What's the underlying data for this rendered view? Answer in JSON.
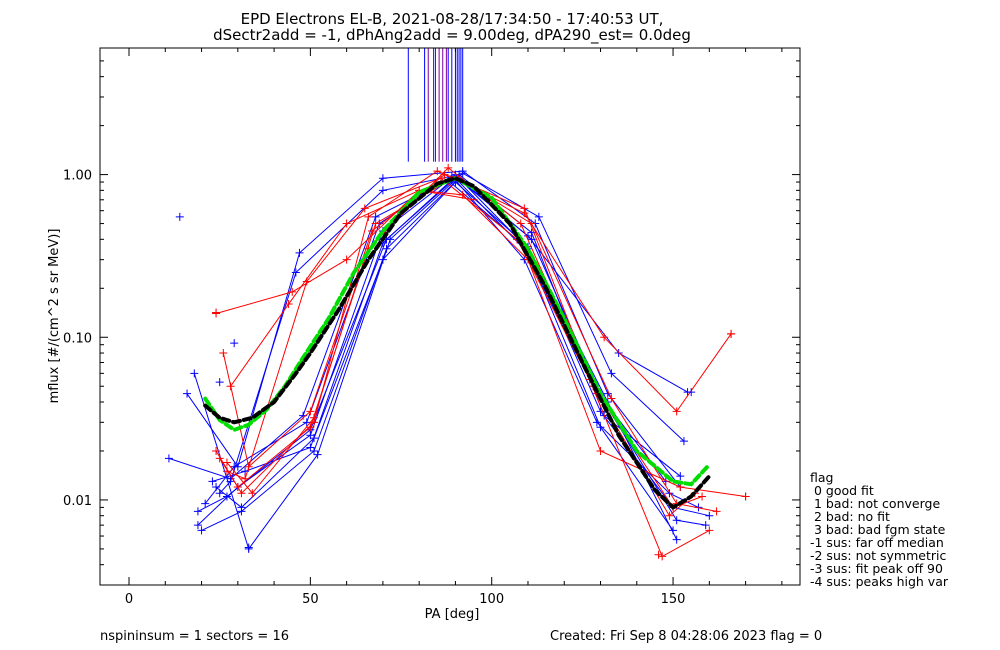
{
  "chart_data": {
    "type": "line",
    "title": "EPD Electrons EL-B, 2021-08-28/17:34:50 - 17:40:53 UT,",
    "subtitle": "dSectr2add = -1, dPhAng2add = 9.00deg, dPA290_est=   0.0deg",
    "xlabel": "PA [deg]",
    "ylabel": "mflux [#/(cm^2 s sr MeV)]",
    "xlim": [
      -8,
      185
    ],
    "ylim": [
      0.003,
      6.0
    ],
    "yscale": "log",
    "x_ticks": [
      0,
      50,
      100,
      150
    ],
    "x_tick_labels": [
      "0",
      "50",
      "100",
      "150"
    ],
    "y_ticks": [
      0.01,
      0.1,
      1.0
    ],
    "y_tick_labels": [
      "0.01",
      "0.10",
      "1.00"
    ],
    "grid": false,
    "colors": {
      "blue": "#0000ff",
      "red": "#ff0000",
      "green": "#00dd00",
      "purple": "#7f00a0",
      "black": "#000000"
    },
    "series": [
      {
        "color": "blue",
        "x": [
          19,
          30,
          50,
          70,
          90,
          110,
          130,
          150,
          160
        ],
        "y": [
          0.007,
          0.012,
          0.025,
          0.45,
          1.0,
          0.35,
          0.035,
          0.009,
          0.008
        ]
      },
      {
        "color": "blue",
        "x": [
          20,
          31,
          51,
          71,
          91,
          111,
          131,
          151,
          159
        ],
        "y": [
          0.0065,
          0.0085,
          0.02,
          0.35,
          0.95,
          0.4,
          0.04,
          0.0075,
          0.007
        ]
      },
      {
        "color": "blue",
        "x": [
          21,
          29,
          49,
          69,
          89,
          109,
          129,
          149,
          157
        ],
        "y": [
          0.0095,
          0.016,
          0.03,
          0.5,
          0.98,
          0.3,
          0.03,
          0.011,
          0.009
        ]
      },
      {
        "color": "blue",
        "x": [
          11,
          28,
          48,
          68,
          88,
          108,
          128,
          148
        ],
        "y": [
          0.018,
          0.0135,
          0.033,
          0.55,
          0.92,
          0.38,
          0.05,
          0.013
        ]
      },
      {
        "color": "blue",
        "x": [
          16,
          30,
          47,
          70,
          92,
          112,
          132,
          152
        ],
        "y": [
          0.045,
          0.016,
          0.33,
          0.95,
          1.05,
          0.5,
          0.045,
          0.012
        ]
      },
      {
        "color": "blue",
        "x": [
          18,
          33,
          52,
          72,
          92,
          113,
          133,
          153
        ],
        "y": [
          0.06,
          0.005,
          0.019,
          0.4,
          1.02,
          0.55,
          0.06,
          0.023
        ]
      },
      {
        "color": "blue",
        "x": [
          23,
          32,
          50,
          70,
          90,
          110,
          135,
          154
        ],
        "y": [
          0.013,
          0.015,
          0.021,
          0.38,
          0.97,
          0.42,
          0.08,
          0.046
        ]
      },
      {
        "color": "blue",
        "x": [
          19,
          27,
          50,
          71,
          90,
          110,
          130,
          150
        ],
        "y": [
          0.0085,
          0.0105,
          0.027,
          0.4,
          0.95,
          0.33,
          0.028,
          0.0065
        ]
      },
      {
        "color": "blue",
        "x": [
          24,
          31,
          51,
          70,
          90,
          110,
          132,
          151
        ],
        "y": [
          0.012,
          0.009,
          0.024,
          0.3,
          0.9,
          0.36,
          0.04,
          0.0057
        ]
      },
      {
        "color": "blue",
        "x": [
          25,
          28,
          46,
          70,
          91,
          111,
          131,
          152
        ],
        "y": [
          0.011,
          0.013,
          0.25,
          0.8,
          1.0,
          0.44,
          0.033,
          0.014
        ]
      },
      {
        "color": "red",
        "x": [
          24,
          31,
          51,
          66,
          85,
          109,
          129,
          149,
          156
        ],
        "y": [
          0.02,
          0.011,
          0.03,
          0.55,
          1.05,
          0.62,
          0.045,
          0.008,
          0.011
        ]
      },
      {
        "color": "red",
        "x": [
          25,
          30,
          50,
          66,
          88,
          108,
          128,
          150,
          158
        ],
        "y": [
          0.018,
          0.012,
          0.028,
          0.35,
          1.1,
          0.5,
          0.05,
          0.009,
          0.0105
        ]
      },
      {
        "color": "red",
        "x": [
          27,
          32,
          49,
          65,
          86,
          107,
          127,
          147,
          160
        ],
        "y": [
          0.015,
          0.0135,
          0.22,
          0.62,
          0.95,
          0.4,
          0.055,
          0.0045,
          0.0065
        ]
      },
      {
        "color": "red",
        "x": [
          24,
          45,
          60,
          80,
          92,
          110,
          130,
          152,
          170
        ],
        "y": [
          0.14,
          0.19,
          0.3,
          0.8,
          0.75,
          0.3,
          0.02,
          0.012,
          0.0105
        ]
      },
      {
        "color": "red",
        "x": [
          26,
          33,
          50,
          67,
          87,
          109,
          131,
          151,
          166
        ],
        "y": [
          0.08,
          0.016,
          0.035,
          0.45,
          1.0,
          0.58,
          0.1,
          0.035,
          0.105
        ]
      },
      {
        "color": "red",
        "x": [
          27,
          34,
          51,
          68,
          90,
          111,
          133,
          151,
          162
        ],
        "y": [
          0.017,
          0.011,
          0.032,
          0.5,
          0.97,
          0.5,
          0.042,
          0.0095,
          0.0085
        ]
      },
      {
        "color": "red",
        "x": [
          28,
          44,
          60,
          80,
          95
        ],
        "y": [
          0.05,
          0.16,
          0.5,
          0.8,
          0.7
        ]
      },
      {
        "color": "green",
        "dashed": true,
        "x": [
          21,
          25,
          29,
          33,
          38,
          43,
          48,
          55,
          62,
          70,
          80,
          90,
          100,
          110,
          120,
          130,
          140,
          150,
          155,
          160
        ],
        "y": [
          0.042,
          0.031,
          0.027,
          0.029,
          0.036,
          0.05,
          0.075,
          0.13,
          0.25,
          0.45,
          0.78,
          0.95,
          0.72,
          0.35,
          0.13,
          0.045,
          0.02,
          0.013,
          0.0125,
          0.0165
        ]
      },
      {
        "color": "black",
        "dashed": true,
        "x": [
          21,
          25,
          29,
          34,
          40,
          46,
          50,
          58,
          66,
          75,
          85,
          90,
          95,
          105,
          115,
          125,
          135,
          145,
          150,
          155,
          160
        ],
        "y": [
          0.038,
          0.032,
          0.03,
          0.032,
          0.04,
          0.06,
          0.08,
          0.15,
          0.3,
          0.58,
          0.88,
          0.95,
          0.85,
          0.5,
          0.2,
          0.07,
          0.025,
          0.0115,
          0.009,
          0.0105,
          0.014
        ]
      }
    ],
    "scatter_points": [
      {
        "color": "blue",
        "x": 14,
        "y": 0.55
      },
      {
        "color": "blue",
        "x": 155,
        "y": 0.046
      },
      {
        "color": "blue",
        "x": 29,
        "y": 0.092
      },
      {
        "color": "blue",
        "x": 25,
        "y": 0.053
      },
      {
        "color": "blue",
        "x": 33,
        "y": 0.0051
      },
      {
        "color": "red",
        "x": 166,
        "y": 0.105
      },
      {
        "color": "red",
        "x": 24,
        "y": 0.142
      },
      {
        "color": "red",
        "x": 170,
        "y": 0.0105
      },
      {
        "color": "red",
        "x": 146,
        "y": 0.0046
      }
    ],
    "vertical_lines": [
      {
        "color": "blue",
        "x": [
          77,
          81.5,
          84,
          88,
          89,
          90,
          90.5,
          91,
          91.5,
          92
        ]
      },
      {
        "color": "purple",
        "x": [
          82.5,
          84.5,
          85.5,
          86.5,
          87.5
        ]
      }
    ],
    "legend": {
      "placement": "bottom-right outside",
      "items": [
        "flag",
        " 0 good fit",
        " 1 bad: not converge",
        " 2 bad: no fit",
        " 3 bad: bad fgm state",
        "-1 sus: far off median",
        "-2 sus: not symmetric",
        "-3 sus: fit peak off 90",
        "-4 sus: peaks high var"
      ]
    }
  },
  "footer": {
    "left": "nspininsum =  1  sectors = 16",
    "right": "Created: Fri Sep  8 04:28:06 2023   flag = 0"
  }
}
